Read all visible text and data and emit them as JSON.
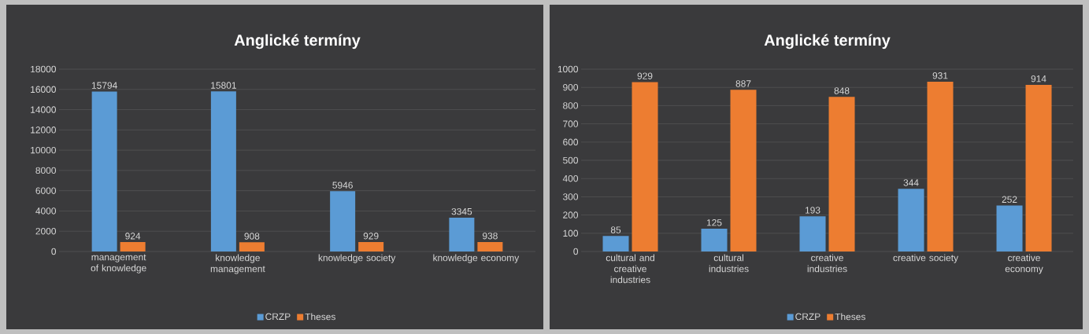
{
  "chart_data": [
    {
      "type": "bar",
      "title": "Anglické termíny",
      "categories": [
        "management of knowledge",
        "knowledge management",
        "knowledge society",
        "knowledge economy"
      ],
      "series": [
        {
          "name": "CRZP",
          "color": "#5b9bd5",
          "values": [
            15794,
            15801,
            5946,
            3345
          ]
        },
        {
          "name": "Theses",
          "color": "#ed7d31",
          "values": [
            924,
            908,
            929,
            938
          ]
        }
      ],
      "ylim": [
        0,
        18000
      ],
      "yticks": [
        0,
        2000,
        4000,
        6000,
        8000,
        10000,
        12000,
        14000,
        16000,
        18000
      ],
      "grid": "y",
      "legend": "bottom",
      "data_labels": true
    },
    {
      "type": "bar",
      "title": "Anglické termíny",
      "categories": [
        "cultural and creative industries",
        "cultural industries",
        "creative industries",
        "creative society",
        "creative economy"
      ],
      "series": [
        {
          "name": "CRZP",
          "color": "#5b9bd5",
          "values": [
            85,
            125,
            193,
            344,
            252
          ]
        },
        {
          "name": "Theses",
          "color": "#ed7d31",
          "values": [
            929,
            887,
            848,
            931,
            914
          ]
        }
      ],
      "ylim": [
        0,
        1000
      ],
      "yticks": [
        0,
        100,
        200,
        300,
        400,
        500,
        600,
        700,
        800,
        900,
        1000
      ],
      "grid": "y",
      "legend": "bottom",
      "data_labels": true
    }
  ]
}
